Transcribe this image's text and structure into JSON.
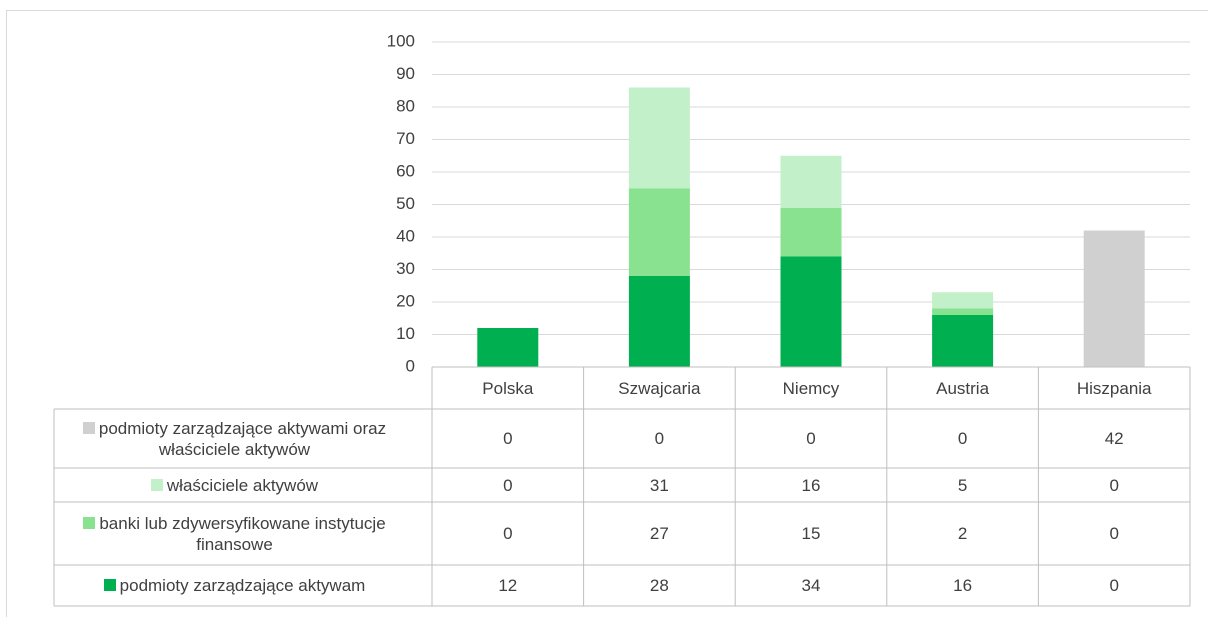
{
  "chart_data": {
    "type": "stacked_bar",
    "categories": [
      "Polska",
      "Szwajcaria",
      "Niemcy",
      "Austria",
      "Hiszpania"
    ],
    "series": [
      {
        "name": "podmioty zarządzające aktywam",
        "color": "#00b050",
        "values": [
          12,
          28,
          34,
          16,
          0
        ]
      },
      {
        "name": "banki lub zdywersyfikowane instytucje finansowe",
        "color": "#88e290",
        "values": [
          0,
          27,
          15,
          2,
          0
        ]
      },
      {
        "name": "właściciele aktywów",
        "color": "#c2f0c8",
        "values": [
          0,
          31,
          16,
          5,
          0
        ]
      },
      {
        "name": "podmioty zarządzające aktywami oraz właściciele aktywów",
        "color": "#d0d0d0",
        "values": [
          0,
          0,
          0,
          0,
          42
        ]
      }
    ],
    "ylim": [
      0,
      100
    ],
    "yticks": [
      0,
      10,
      20,
      30,
      40,
      50,
      60,
      70,
      80,
      90,
      100
    ],
    "grid": true,
    "data_table": true
  }
}
